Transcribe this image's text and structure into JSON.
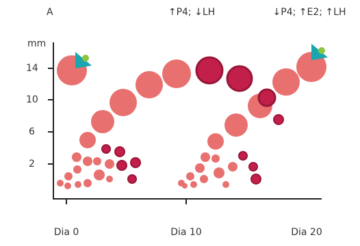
{
  "panel_label": "A",
  "annotations": [
    "↑P4; ↓LH",
    "↓P4; ↑E2; ↑LH"
  ],
  "y_axis": {
    "unit": "mm",
    "ticks": [
      "14",
      "10",
      "6",
      "2"
    ]
  },
  "x_axis": {
    "ticks": [
      "Dia 0",
      "Dia 10",
      "Dia 20"
    ]
  }
}
